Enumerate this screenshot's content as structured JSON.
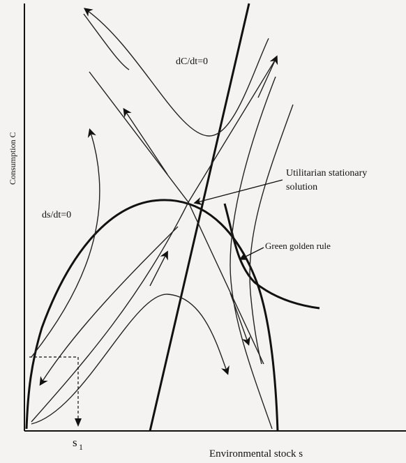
{
  "labels": {
    "y_axis": "Consumption C",
    "x_axis": "Environmental stock s",
    "s1_base": "s",
    "s1_sub": "1",
    "dC_dt": "dC/dt=0",
    "ds_dt": "ds/dt=0",
    "utilitarian_line1": "Utilitarian stationary",
    "utilitarian_line2": "solution",
    "green_golden_rule": "Green golden rule"
  }
}
